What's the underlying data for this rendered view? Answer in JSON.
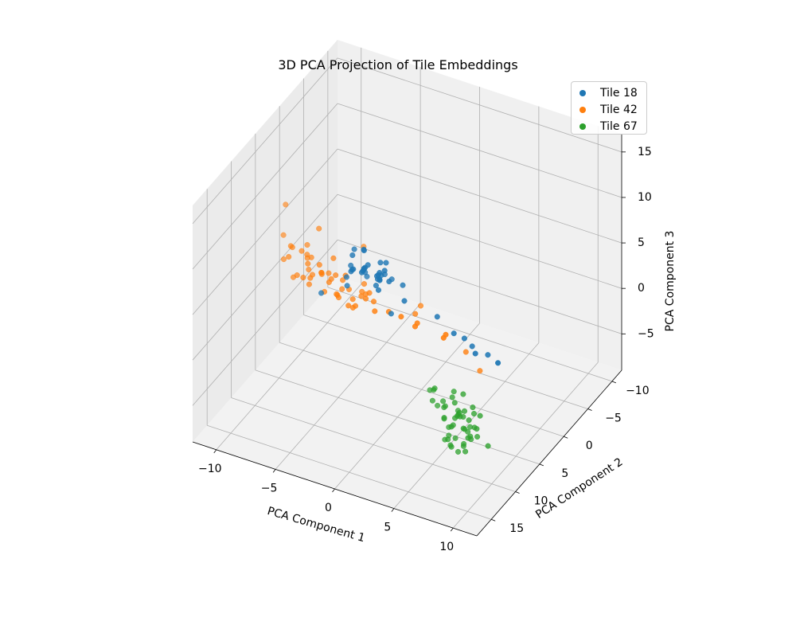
{
  "chart_data": {
    "type": "scatter",
    "projection": "3d",
    "title": "3D PCA Projection of Tile Embeddings",
    "xlabel": "PCA Component 1",
    "ylabel": "PCA Component 2",
    "zlabel": "PCA Component 3",
    "xlim": [
      -12,
      12
    ],
    "ylim": [
      -12,
      18
    ],
    "zlim": [
      -9,
      17
    ],
    "xticks": [
      "−10",
      "−5",
      "0",
      "5",
      "10"
    ],
    "yticks": [
      "−10",
      "−5",
      "0",
      "5",
      "10",
      "15"
    ],
    "zticks": [
      "−5",
      "0",
      "5",
      "10",
      "15"
    ],
    "grid": true,
    "legend_position": "top-right",
    "series": [
      {
        "name": "Tile 18",
        "color": "#1f77b4",
        "points": [
          [
            -6.5,
            -4,
            -1
          ],
          [
            -7,
            -5,
            -2
          ],
          [
            -6,
            -3,
            0
          ],
          [
            -7.5,
            -6,
            -3
          ],
          [
            -5.5,
            -4.5,
            -1.5
          ],
          [
            -6.8,
            -2,
            0.5
          ],
          [
            -8,
            -5,
            -2.5
          ],
          [
            -5,
            -3,
            -0.5
          ],
          [
            -6.2,
            -6.5,
            -3.5
          ],
          [
            -7.2,
            -3.5,
            -1
          ],
          [
            -5.8,
            -5.5,
            -2
          ],
          [
            -6.6,
            -4.2,
            1
          ],
          [
            -4.5,
            -2.5,
            1.5
          ],
          [
            -7.8,
            -4.8,
            -0.5
          ],
          [
            -5.2,
            -6,
            -3
          ],
          [
            -6,
            -2.8,
            2
          ],
          [
            -6.9,
            -5.8,
            -1.8
          ],
          [
            -5.4,
            -3.8,
            -2.2
          ],
          [
            -7.4,
            -2.6,
            -1.4
          ],
          [
            -4.8,
            -4.4,
            0.2
          ],
          [
            -6.4,
            -7,
            -4
          ],
          [
            -5.6,
            -1.8,
            0.8
          ],
          [
            -8.4,
            -6.2,
            -3.2
          ],
          [
            -3.2,
            0.5,
            2.5
          ],
          [
            -2.5,
            1.5,
            3.5
          ],
          [
            -1.5,
            2.5,
            4
          ],
          [
            -3.8,
            2,
            3
          ],
          [
            -2,
            -1,
            1
          ],
          [
            0.5,
            -2,
            -2
          ],
          [
            2.5,
            -5,
            -7
          ],
          [
            4,
            -6,
            -8
          ],
          [
            1.5,
            -3,
            -4
          ],
          [
            3,
            -1.5,
            -3
          ],
          [
            6,
            1,
            -2
          ],
          [
            5,
            1.8,
            -1
          ],
          [
            -4.2,
            -1.2,
            0.6
          ],
          [
            -5.9,
            -6.8,
            -2.6
          ],
          [
            -7.6,
            -3.2,
            -2.8
          ],
          [
            -4,
            -3.5,
            -4.5
          ],
          [
            -6.7,
            -7.5,
            -5.5
          ],
          [
            -9.5,
            -2.5,
            -4
          ],
          [
            -3.5,
            -5,
            -3.8
          ],
          [
            -5.1,
            -0.8,
            1.2
          ],
          [
            -6.3,
            -1.5,
            2.8
          ]
        ]
      },
      {
        "name": "Tile 42",
        "color": "#ff7f0e",
        "points": [
          [
            -8,
            3,
            2
          ],
          [
            -7,
            2,
            1
          ],
          [
            -6,
            4,
            3
          ],
          [
            -9,
            1,
            0
          ],
          [
            -7.5,
            5,
            4
          ],
          [
            -6.5,
            1.5,
            -0.5
          ],
          [
            -8.5,
            4,
            5
          ],
          [
            -5.5,
            3,
            1.5
          ],
          [
            -7.2,
            6,
            6
          ],
          [
            -9.5,
            2.5,
            1
          ],
          [
            -6.8,
            0.5,
            -1.5
          ],
          [
            -5,
            2,
            0
          ],
          [
            -8.2,
            7,
            7.5
          ],
          [
            -7.8,
            1,
            -1
          ],
          [
            -6.2,
            5.5,
            4.5
          ],
          [
            -4.5,
            4,
            2.5
          ],
          [
            -9.8,
            3.5,
            3.5
          ],
          [
            -5.8,
            0,
            -2.5
          ],
          [
            -7,
            3.5,
            2.8
          ],
          [
            -8.8,
            5.2,
            6
          ],
          [
            -6,
            -1,
            -3
          ],
          [
            -4,
            1,
            0.5
          ],
          [
            -10,
            0,
            -1
          ],
          [
            -5.2,
            6.5,
            5.5
          ],
          [
            -7.4,
            -0.5,
            -2
          ],
          [
            -3.5,
            3,
            1.8
          ],
          [
            -8.6,
            2.2,
            0.2
          ],
          [
            -6.6,
            4.6,
            3.8
          ],
          [
            -4.8,
            -0.2,
            -1.2
          ],
          [
            -9.2,
            6,
            5
          ],
          [
            -5.6,
            2.6,
            2.2
          ],
          [
            -7.6,
            4.2,
            4.8
          ],
          [
            -3,
            5,
            3.5
          ],
          [
            -6.4,
            8,
            9
          ],
          [
            -5,
            9,
            12
          ],
          [
            -8,
            9,
            10
          ],
          [
            -7,
            11,
            15
          ],
          [
            -2,
            7,
            6
          ],
          [
            0,
            12,
            14
          ],
          [
            1.5,
            5,
            3
          ],
          [
            4,
            10,
            8
          ],
          [
            7,
            8,
            3
          ],
          [
            9,
            10,
            3
          ],
          [
            -4,
            -3,
            -4
          ],
          [
            -6,
            -5,
            -6
          ],
          [
            -3,
            -6,
            -7
          ],
          [
            -5,
            -8,
            -8
          ],
          [
            -2,
            -4,
            -5
          ],
          [
            0,
            -5,
            -6
          ],
          [
            -1,
            -7,
            -8
          ],
          [
            -7,
            -2,
            -4
          ],
          [
            -4.2,
            2.2,
            0.8
          ],
          [
            -6.1,
            0.8,
            1.4
          ],
          [
            -8.3,
            3.2,
            3.2
          ],
          [
            -5.3,
            4.8,
            4.2
          ],
          [
            -7.9,
            1.8,
            2.4
          ],
          [
            -3.8,
            0.6,
            -0.6
          ],
          [
            -6.9,
            6.8,
            7
          ],
          [
            -9,
            4.5,
            2.2
          ],
          [
            -5.9,
            3.8,
            5.2
          ]
        ]
      },
      {
        "name": "Tile 67",
        "color": "#2ca02c",
        "points": [
          [
            8,
            12,
            -1
          ],
          [
            7.5,
            11,
            -2
          ],
          [
            8.5,
            13,
            0
          ],
          [
            9,
            12,
            -3
          ],
          [
            7,
            12.5,
            -1.5
          ],
          [
            8.2,
            11.5,
            1
          ],
          [
            7.8,
            13.5,
            -2.5
          ],
          [
            8.8,
            11,
            -0.5
          ],
          [
            9.2,
            13,
            -1.8
          ],
          [
            7.4,
            11.8,
            0.5
          ],
          [
            8.6,
            12.4,
            -4
          ],
          [
            7.6,
            13.2,
            -3.2
          ],
          [
            8.4,
            10.8,
            -2.2
          ],
          [
            9.4,
            12.2,
            -0.2
          ],
          [
            7.2,
            10.8,
            -0.8
          ],
          [
            8,
            14,
            -1.2
          ],
          [
            8.9,
            11.6,
            -3.6
          ],
          [
            7.7,
            12.2,
            1.5
          ],
          [
            8.3,
            12.8,
            -4.5
          ],
          [
            9.1,
            13.6,
            -2.8
          ],
          [
            6.8,
            12,
            -2
          ],
          [
            8.1,
            11.2,
            -3
          ],
          [
            8.7,
            13.8,
            0.8
          ],
          [
            7.9,
            10.5,
            -1.6
          ],
          [
            9.6,
            12.6,
            -1.4
          ],
          [
            7.3,
            13,
            0.2
          ],
          [
            8.5,
            11.8,
            -5
          ],
          [
            6.5,
            11.5,
            -0.5
          ],
          [
            7.1,
            12.6,
            -3.8
          ],
          [
            9.3,
            11.4,
            -2.4
          ],
          [
            8.2,
            13.2,
            -0.6
          ],
          [
            7.5,
            11.4,
            -4.2
          ],
          [
            6,
            12,
            1
          ],
          [
            10,
            13,
            -2
          ],
          [
            5.5,
            11,
            0
          ],
          [
            6.2,
            13.5,
            1.8
          ],
          [
            9.8,
            14,
            -0.4
          ],
          [
            8,
            10,
            -4.8
          ],
          [
            6.8,
            10.5,
            -6
          ],
          [
            7.8,
            14.5,
            1.2
          ],
          [
            5,
            10,
            -2
          ],
          [
            10.5,
            12,
            -3.4
          ],
          [
            8.4,
            12,
            -1.1
          ],
          [
            7.6,
            12.1,
            -2.3
          ],
          [
            8.9,
            12.9,
            -1.7
          ],
          [
            7,
            11,
            -3.4
          ],
          [
            9.5,
            11.2,
            -1
          ],
          [
            6.6,
            12.9,
            -0.1
          ],
          [
            8.1,
            13.9,
            -3.2
          ],
          [
            7.4,
            10.2,
            -2.6
          ]
        ]
      }
    ]
  }
}
